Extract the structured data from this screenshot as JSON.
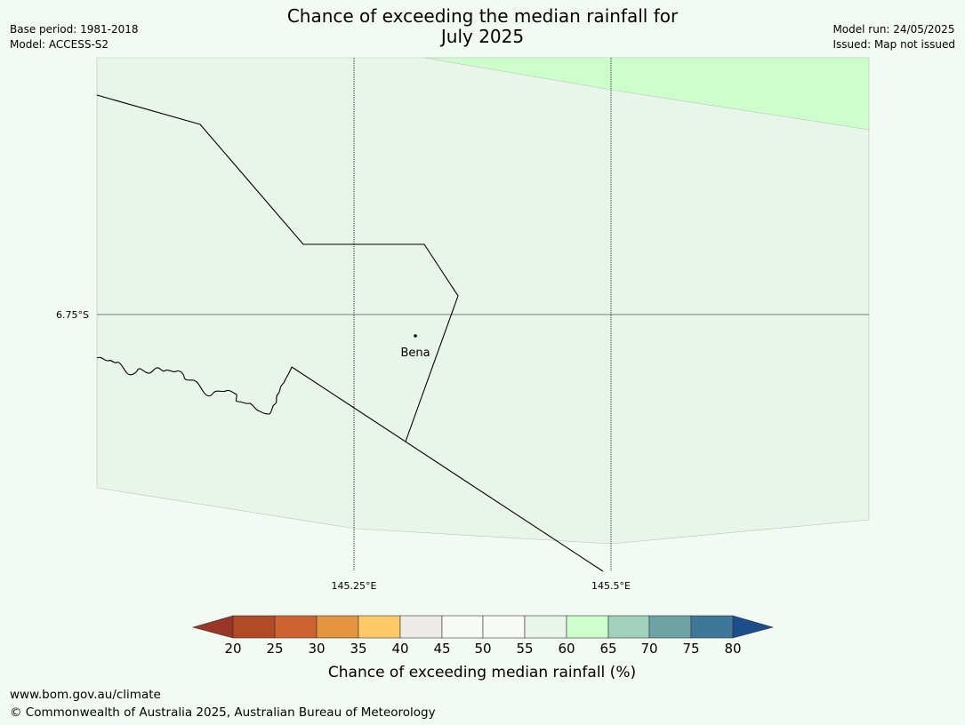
{
  "header": {
    "title_line1": "Chance of exceeding the median rainfall for",
    "title_line2": "July 2025",
    "base_period": "Base period: 1981-2018",
    "model": "Model: ACCESS-S2",
    "model_run": "Model run: 24/05/2025",
    "issued": "Issued: Map not issued"
  },
  "map": {
    "lat_labels": [
      "6.75°S"
    ],
    "lon_labels": [
      "145.25°E",
      "145.5°E"
    ],
    "places": [
      {
        "name": "Bena"
      }
    ],
    "colors": {
      "region_fill": "#e9f5e9",
      "highlight_fill": "#ccffcc",
      "graticule": "#000000"
    }
  },
  "colorbar": {
    "label": "Chance of exceeding median rainfall (%)",
    "ticks": [
      "20",
      "25",
      "30",
      "35",
      "40",
      "45",
      "50",
      "55",
      "60",
      "65",
      "70",
      "75",
      "80"
    ],
    "colors": [
      "#9a3628",
      "#b24a26",
      "#cf6330",
      "#e3953f",
      "#fec966",
      "#ecebe7",
      "#f8faf7",
      "#f8faf7",
      "#e9f5e9",
      "#ccffcc",
      "#9fd1bc",
      "#6ea3a6",
      "#3d7799",
      "#1b4e8b"
    ]
  },
  "footer": {
    "url": "www.bom.gov.au/climate",
    "copyright": "© Commonwealth of Australia 2025, Australian Bureau of Meteorology"
  }
}
